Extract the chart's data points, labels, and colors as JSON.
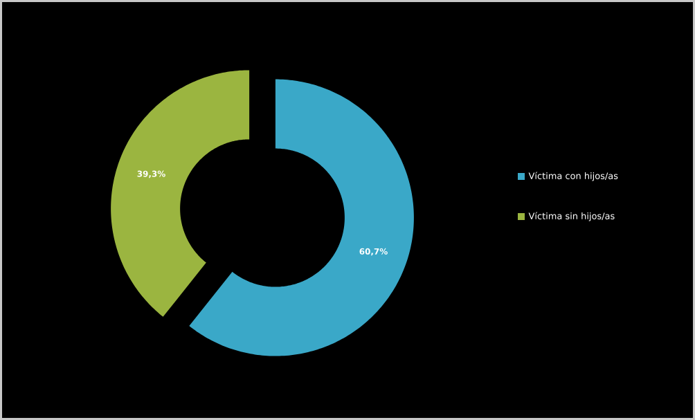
{
  "chart_data": {
    "type": "donut",
    "categories": [
      "Víctima con hijos/as",
      "Víctima sin hijos/as"
    ],
    "values": [
      60.7,
      39.3
    ],
    "colors": [
      "#3aa8c8",
      "#9bb540"
    ],
    "value_labels": [
      "60,7%",
      "39,3%"
    ],
    "legend": "right"
  }
}
